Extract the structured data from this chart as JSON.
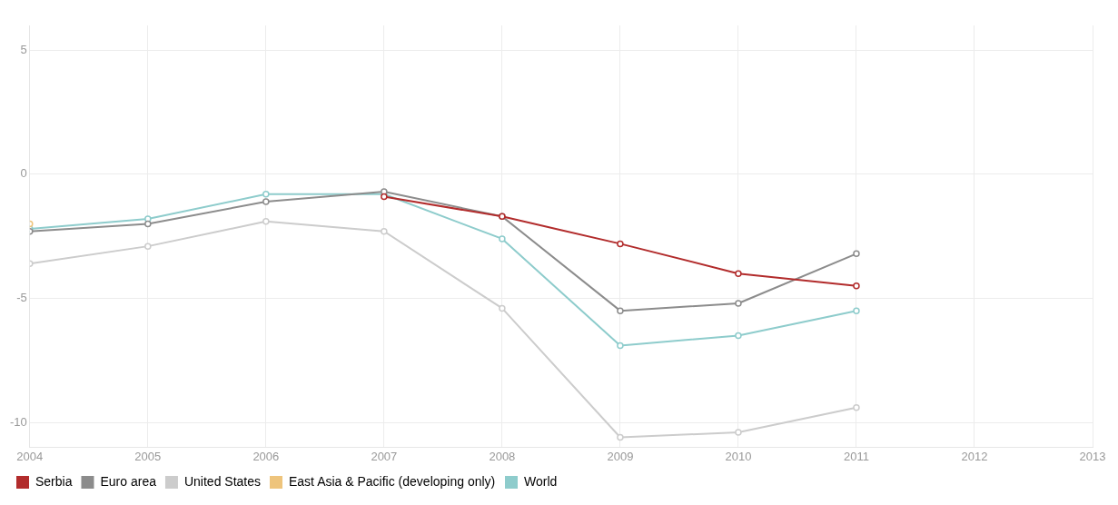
{
  "chart_data": {
    "type": "line",
    "x": [
      2004,
      2005,
      2006,
      2007,
      2008,
      2009,
      2010,
      2011
    ],
    "xlim": [
      2004,
      2013
    ],
    "xticks": [
      2004,
      2005,
      2006,
      2007,
      2008,
      2009,
      2010,
      2011,
      2012,
      2013
    ],
    "ylim": [
      -11,
      6
    ],
    "yticks": [
      -10,
      -5,
      0,
      5
    ],
    "grid": true,
    "legend": "bottom",
    "marker": "circle",
    "series": [
      {
        "name": "Serbia",
        "color": "#b22c2c",
        "values": [
          null,
          null,
          null,
          -0.9,
          -1.7,
          -2.8,
          -4.0,
          -4.5
        ]
      },
      {
        "name": "Euro area",
        "color": "#8c8c8c",
        "values": [
          -2.3,
          -2.0,
          -1.1,
          -0.7,
          -1.7,
          -5.5,
          -5.2,
          -3.2
        ]
      },
      {
        "name": "United States",
        "color": "#cccccc",
        "values": [
          -3.6,
          -2.9,
          -1.9,
          -2.3,
          -5.4,
          -10.6,
          -10.4,
          -9.4
        ]
      },
      {
        "name": "East Asia & Pacific (developing only)",
        "color": "#eec47c",
        "values": [
          -2.0,
          null,
          null,
          null,
          null,
          null,
          null,
          null
        ]
      },
      {
        "name": "World",
        "color": "#8ecccc",
        "values": [
          -2.2,
          -1.8,
          -0.8,
          -0.8,
          -2.6,
          -6.9,
          -6.5,
          -5.5
        ]
      }
    ]
  }
}
